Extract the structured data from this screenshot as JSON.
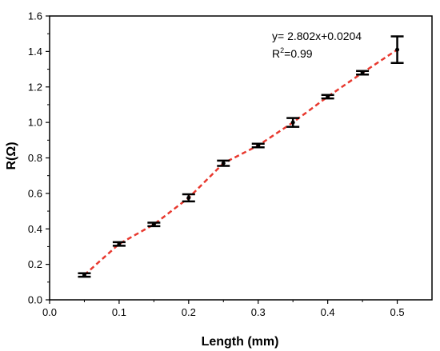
{
  "chart_data": {
    "type": "scatter",
    "xlabel": "Length (mm)",
    "ylabel": "R(Ω)",
    "xlim": [
      0.0,
      0.55
    ],
    "ylim": [
      0.0,
      1.6
    ],
    "xticks": [
      "0.0",
      "0.1",
      "0.2",
      "0.3",
      "0.4",
      "0.5"
    ],
    "yticks": [
      "0.0",
      "0.2",
      "0.4",
      "0.6",
      "0.8",
      "1.0",
      "1.2",
      "1.4",
      "1.6"
    ],
    "grid": false,
    "series": [
      {
        "marker_color": "#000000",
        "line_color": "#e8392f",
        "x": [
          0.05,
          0.1,
          0.15,
          0.2,
          0.25,
          0.3,
          0.35,
          0.4,
          0.45,
          0.5
        ],
        "y": [
          0.14,
          0.315,
          0.425,
          0.575,
          0.77,
          0.87,
          1.0,
          1.145,
          1.28,
          1.41
        ],
        "error": [
          0.01,
          0.01,
          0.01,
          0.02,
          0.015,
          0.01,
          0.025,
          0.01,
          0.01,
          0.075
        ]
      }
    ],
    "annotations": {
      "equation": "y= 2.802x+0.0204",
      "r2_prefix": "R",
      "r2_sup": "2",
      "r2_value": "=0.99"
    }
  }
}
